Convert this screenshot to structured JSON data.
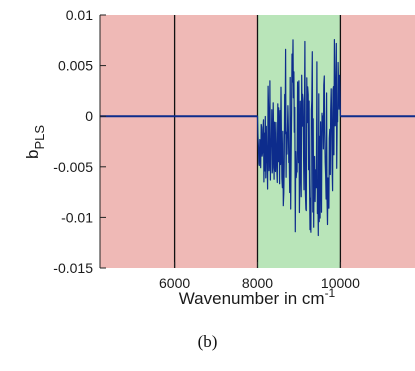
{
  "caption": "(b)",
  "chart_data": {
    "type": "line",
    "xlabel": "Wavenumber in cm",
    "xlabel_superscript": "-1",
    "ylabel": "b",
    "ylabel_subscript": "PLS",
    "xlim": [
      4200,
      11800
    ],
    "ylim": [
      -0.015,
      0.01
    ],
    "xticks": [
      6000,
      8000,
      10000
    ],
    "xtick_labels": [
      "6000",
      "8000",
      "10000"
    ],
    "yticks": [
      0.01,
      0.005,
      0,
      -0.005,
      -0.01,
      -0.015
    ],
    "ytick_labels": [
      "0.01",
      "0.005",
      "0",
      "-0.005",
      "-0.01",
      "-0.015"
    ],
    "grid": false,
    "regions": [
      {
        "from": 4200,
        "to": 8000,
        "color": "#efb9b6",
        "state": "excluded"
      },
      {
        "from": 8000,
        "to": 10000,
        "color": "#b9e5b9",
        "state": "selected"
      },
      {
        "from": 10000,
        "to": 11800,
        "color": "#efb9b6",
        "state": "excluded"
      }
    ],
    "vlines": [
      6000,
      8000,
      10000
    ],
    "series": [
      {
        "color": "#0d2c8c",
        "segments": [
          {
            "x": [
              4200,
              8000
            ],
            "y": [
              0,
              0
            ]
          },
          {
            "x": [
              8000,
              10000
            ],
            "y_min": -0.0148,
            "y_max": 0.0095,
            "description_points": 180
          },
          {
            "x": [
              10000,
              11800
            ],
            "y": [
              0,
              0
            ]
          }
        ]
      }
    ]
  }
}
